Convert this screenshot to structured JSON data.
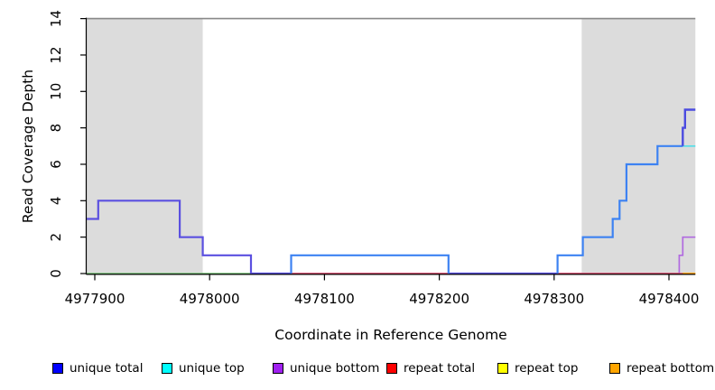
{
  "figure": {
    "y_axis_title": "Read Coverage Depth",
    "x_axis_title": "Coordinate in Reference Genome"
  },
  "legend": [
    {
      "label": "unique total",
      "color": "#0000ff"
    },
    {
      "label": "unique top",
      "color": "#00ffff"
    },
    {
      "label": "unique bottom",
      "color": "#a020f0"
    },
    {
      "label": "repeat total",
      "color": "#ff0000"
    },
    {
      "label": "repeat top",
      "color": "#ffff00"
    },
    {
      "label": "repeat bottom",
      "color": "#ffa500"
    }
  ],
  "chart_data": {
    "type": "line",
    "subtype": "step-coverage",
    "title": "",
    "xlabel": "Coordinate in Reference Genome",
    "ylabel": "Read Coverage Depth",
    "xlim": [
      4977893,
      4978423
    ],
    "ylim": [
      0,
      14
    ],
    "x_ticks": [
      4977900,
      4978000,
      4978100,
      4978200,
      4978300,
      4978400
    ],
    "y_ticks": [
      0,
      2,
      4,
      6,
      8,
      10,
      12,
      14
    ],
    "grid": false,
    "legend_position": "bottom",
    "shaded_region_color": "#dcdcdc",
    "shaded_regions": [
      {
        "name": "left-repeat-region",
        "from": 4977893,
        "to": 4977994
      },
      {
        "name": "right-repeat-region",
        "from": 4978324,
        "to": 4978423
      }
    ],
    "series": [
      {
        "name": "baseline-overlap-green (unique top + repeat top at 0)",
        "color": "#6ec06e",
        "width": 1.6,
        "points": [
          [
            4977893,
            0
          ],
          [
            4978036,
            0
          ]
        ]
      },
      {
        "name": "unique-bottom (purple)",
        "color": "#b16ae0",
        "width": 1.7,
        "points": [
          [
            4978036,
            0
          ],
          [
            4978409,
            0
          ],
          [
            4978409,
            1
          ],
          [
            4978412,
            1
          ],
          [
            4978412,
            2
          ],
          [
            4978423,
            2
          ]
        ]
      },
      {
        "name": "repeat-total (red)",
        "color": "#e04a5a",
        "width": 1.6,
        "points": [
          [
            4978071,
            0
          ],
          [
            4978414,
            0
          ]
        ]
      },
      {
        "name": "repeat-bottom (orange)",
        "color": "#ffa500",
        "width": 2,
        "points": [
          [
            4978412,
            0
          ],
          [
            4978423,
            0
          ]
        ]
      },
      {
        "name": "unique-top (cyan, depth 7 at right edge)",
        "color": "#55dfe8",
        "width": 1.7,
        "points": [
          [
            4978412,
            7
          ],
          [
            4978423,
            7
          ]
        ]
      },
      {
        "name": "unique-total+bottom overlap left (violet)",
        "color": "#5b50e0",
        "width": 2.2,
        "points": [
          [
            4977893,
            3
          ],
          [
            4977903,
            3
          ],
          [
            4977903,
            4
          ],
          [
            4977974,
            4
          ],
          [
            4977974,
            2
          ],
          [
            4977994,
            2
          ],
          [
            4977994,
            1
          ],
          [
            4978036,
            1
          ],
          [
            4978036,
            0
          ],
          [
            4978071,
            0
          ]
        ]
      },
      {
        "name": "unique-total+bottom overlap middle baseline (violet)",
        "color": "#5b50e0",
        "width": 2.2,
        "points": [
          [
            4978208,
            0
          ],
          [
            4978303,
            0
          ]
        ]
      },
      {
        "name": "unique-total+top overlap middle plateau (bright blue)",
        "color": "#3d82f2",
        "width": 2.2,
        "points": [
          [
            4978071,
            0
          ],
          [
            4978071,
            1
          ],
          [
            4978208,
            1
          ],
          [
            4978208,
            0
          ]
        ]
      },
      {
        "name": "unique-total+top overlap right ascent (bright blue)",
        "color": "#3d82f2",
        "width": 2.2,
        "points": [
          [
            4978303,
            0
          ],
          [
            4978303,
            1
          ],
          [
            4978325,
            1
          ],
          [
            4978325,
            2
          ],
          [
            4978351,
            2
          ],
          [
            4978351,
            3
          ],
          [
            4978357,
            3
          ],
          [
            4978357,
            4
          ],
          [
            4978363,
            4
          ],
          [
            4978363,
            6
          ],
          [
            4978390,
            6
          ],
          [
            4978390,
            7
          ],
          [
            4978412,
            7
          ]
        ]
      },
      {
        "name": "unique-total top steps (indigo, 7 to 9)",
        "color": "#4b4be0",
        "width": 2.4,
        "points": [
          [
            4978412,
            7
          ],
          [
            4978412,
            8
          ],
          [
            4978414,
            8
          ],
          [
            4978414,
            9
          ],
          [
            4978423,
            9
          ]
        ]
      }
    ],
    "top_boundary_line": {
      "depth": 14,
      "color": "#888888",
      "width": 1.6
    }
  }
}
